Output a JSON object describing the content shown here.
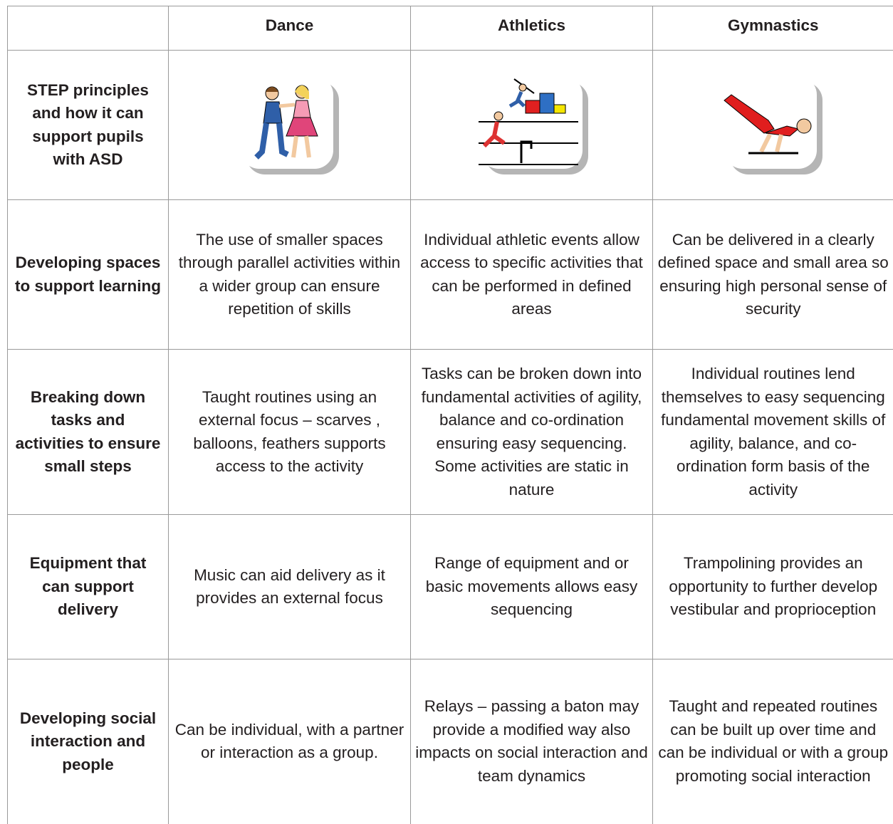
{
  "table": {
    "columns": [
      "Dance",
      "Athletics",
      "Gymnastics"
    ],
    "intro_label": "STEP principles and how it can support pupils with ASD",
    "rows": [
      {
        "label": "Developing spaces to support learning",
        "cells": [
          "The use of smaller spaces through parallel activities within a wider group can ensure repetition of skills",
          "Individual athletic events allow access to specific activities that can be performed in defined areas",
          "Can be delivered in a clearly defined space and small area so ensuring high personal sense of security"
        ]
      },
      {
        "label": "Breaking down tasks and activities to ensure small steps",
        "cells": [
          "Taught routines using an external focus – scarves , balloons, feathers supports access to the activity",
          "Tasks can be broken down into fundamental activities of agility, balance and co-ordination ensuring easy sequencing. Some activities are static in nature",
          "Individual routines lend themselves to easy sequencing fundamental movement skills of agility, balance, and co-ordination form basis of the activity"
        ]
      },
      {
        "label": "Equipment that can support delivery",
        "cells": [
          "Music can aid delivery as it provides an external focus",
          "Range of equipment and or basic movements allows easy sequencing",
          "Trampolining provides an opportunity to further develop vestibular and proprioception"
        ]
      },
      {
        "label": "Developing social interaction and people",
        "cells": [
          "Can be individual, with a partner or interaction as a group.",
          "Relays – passing a baton may provide a modified way also impacts on social interaction and team dynamics",
          "Taught and repeated routines can be built up over time and can be individual or with a group promoting social interaction"
        ]
      }
    ]
  }
}
